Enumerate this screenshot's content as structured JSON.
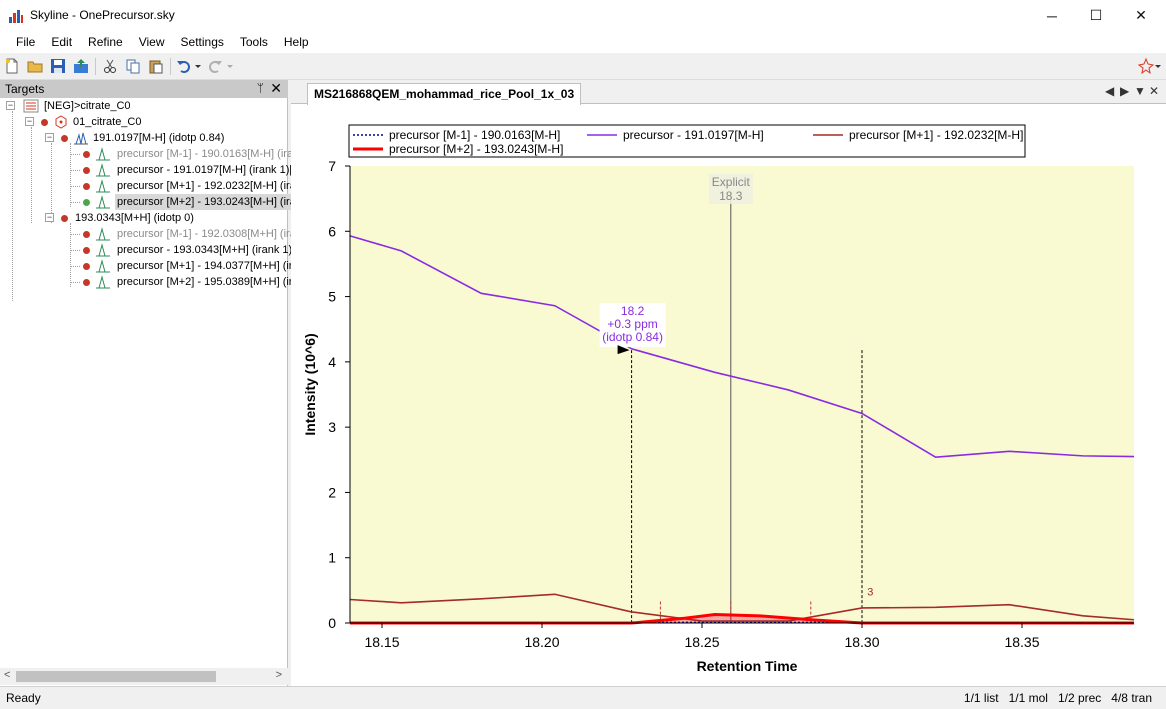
{
  "window": {
    "title": "Skyline - OnePrecursor.sky",
    "minimize": "─",
    "maximize": "☐",
    "close": "✕"
  },
  "menu": [
    "File",
    "Edit",
    "Refine",
    "View",
    "Settings",
    "Tools",
    "Help"
  ],
  "targets_panel": {
    "title": "Targets",
    "pin": "ᛘ",
    "close": "✕",
    "items": [
      {
        "label": "[NEG]>citrate_C0",
        "level": 0,
        "icon": "peptide-list-icon",
        "faded": false,
        "selected": false
      },
      {
        "label": "01_citrate_C0",
        "level": 1,
        "icon": "molecule-icon",
        "faded": false,
        "selected": false
      },
      {
        "label": "191.0197[M-H] (idotp 0.84)",
        "level": 2,
        "icon": "precursor-icon",
        "faded": false,
        "selected": false
      },
      {
        "label": "precursor [M-1] - 190.0163[M-H] (ira",
        "level": 3,
        "icon": "transition-icon",
        "faded": true,
        "selected": false
      },
      {
        "label": "precursor - 191.0197[M-H] (irank 1)[",
        "level": 3,
        "icon": "transition-icon",
        "faded": false,
        "selected": false
      },
      {
        "label": "precursor [M+1] - 192.0232[M-H] (ira",
        "level": 3,
        "icon": "transition-icon",
        "faded": false,
        "selected": false
      },
      {
        "label": "precursor [M+2] - 193.0243[M-H] (ira",
        "level": 3,
        "icon": "transition-icon",
        "faded": false,
        "selected": true
      },
      {
        "label": "193.0343[M+H] (idotp 0)",
        "level": 2,
        "icon": "precursor-icon",
        "faded": false,
        "selected": false
      },
      {
        "label": "precursor [M-1] - 192.0308[M+H] (ira",
        "level": 3,
        "icon": "transition-icon",
        "faded": true,
        "selected": false
      },
      {
        "label": "precursor - 193.0343[M+H] (irank 1)",
        "level": 3,
        "icon": "transition-icon",
        "faded": false,
        "selected": false
      },
      {
        "label": "precursor [M+1] - 194.0377[M+H] (ir",
        "level": 3,
        "icon": "transition-icon",
        "faded": false,
        "selected": false
      },
      {
        "label": "precursor [M+2] - 195.0389[M+H] (ir",
        "level": 3,
        "icon": "transition-icon",
        "faded": false,
        "selected": false
      }
    ]
  },
  "document_tab": {
    "label": "MS216868QEM_mohammad_rice_Pool_1x_03",
    "nav_left": "◀",
    "nav_right": "▶",
    "dropdown": "▼",
    "close": "✕"
  },
  "chart_data": {
    "type": "line",
    "xlabel": "Retention Time",
    "ylabel": "Intensity (10^6)",
    "xlim": [
      18.14,
      18.385
    ],
    "ylim": [
      0,
      7
    ],
    "xticks": [
      "18.15",
      "18.20",
      "18.25",
      "18.30",
      "18.35"
    ],
    "yticks": [
      "0",
      "1",
      "2",
      "3",
      "4",
      "5",
      "6",
      "7"
    ],
    "legend_position": "top",
    "background": "#fafad2",
    "series": [
      {
        "name": "precursor [M-1] - 190.0163[M-H]",
        "color": "#00008b",
        "style": "dotted",
        "x": [
          18.14,
          18.385
        ],
        "y": [
          0.01,
          0.01
        ]
      },
      {
        "name": "precursor - 191.0197[M-H]",
        "color": "#8a2be2",
        "style": "solid",
        "x": [
          18.14,
          18.156,
          18.181,
          18.204,
          18.228,
          18.254,
          18.277,
          18.3,
          18.323,
          18.346,
          18.369,
          18.385
        ],
        "y": [
          5.93,
          5.7,
          5.05,
          4.86,
          4.2,
          3.84,
          3.57,
          3.21,
          2.54,
          2.63,
          2.56,
          2.55
        ]
      },
      {
        "name": "precursor [M+1] - 192.0232[M-H]",
        "color": "#a52a2a",
        "style": "solid",
        "x": [
          18.14,
          18.156,
          18.181,
          18.204,
          18.228,
          18.25,
          18.277,
          18.3,
          18.323,
          18.346,
          18.369,
          18.385
        ],
        "y": [
          0.36,
          0.31,
          0.37,
          0.44,
          0.17,
          0.03,
          0.03,
          0.23,
          0.24,
          0.28,
          0.11,
          0.05
        ]
      },
      {
        "name": "precursor [M+2] - 193.0243[M-H]",
        "color": "#ff0000",
        "style": "thick",
        "x": [
          18.14,
          18.228,
          18.244,
          18.254,
          18.268,
          18.284,
          18.3,
          18.385
        ],
        "y": [
          0.0,
          0.0,
          0.07,
          0.13,
          0.11,
          0.05,
          0.0,
          0.0
        ]
      }
    ],
    "annotations": {
      "explicit": {
        "line1": "Explicit",
        "line2": "18.3",
        "x": 18.259
      },
      "peak": {
        "line1": "18.2",
        "line2": "+0.3 ppm",
        "line3": "(idotp 0.84)",
        "x": 18.228,
        "y": 4.18
      },
      "boundary_start": 18.228,
      "boundary_end": 18.3,
      "small_marks": [
        18.237,
        18.259,
        18.284
      ],
      "small_label": {
        "text": "3",
        "x": 18.301,
        "y": 0.42
      }
    }
  },
  "status": {
    "ready": "Ready",
    "list": "1/1 list",
    "mol": "1/1 mol",
    "prec": "1/2 prec",
    "tran": "4/8 tran"
  }
}
